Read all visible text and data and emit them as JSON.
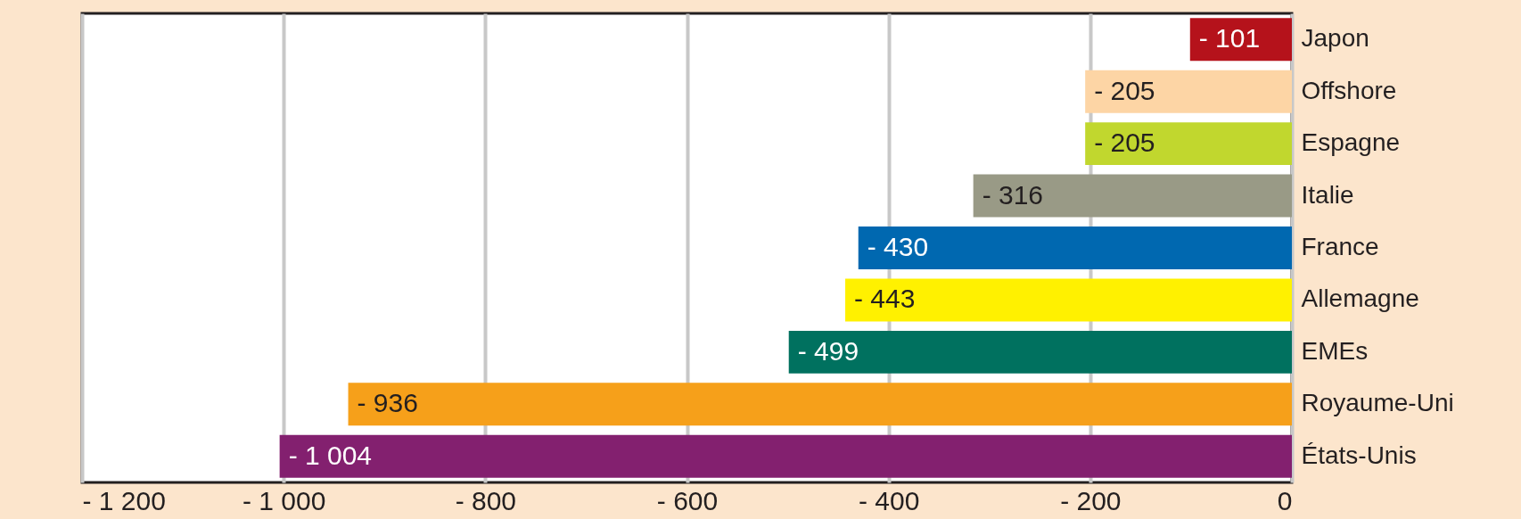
{
  "chart_data": {
    "type": "bar",
    "orientation": "horizontal",
    "categories": [
      "Japon",
      "Offshore",
      "Espagne",
      "Italie",
      "France",
      "Allemagne",
      "EMEs",
      "Royaume-Uni",
      "États-Unis"
    ],
    "values": [
      -101,
      -205,
      -205,
      -316,
      -430,
      -443,
      -499,
      -936,
      -1004
    ],
    "value_labels": [
      "- 101",
      "- 205",
      "- 205",
      "- 316",
      "- 430",
      "- 443",
      "- 499",
      "- 936",
      "- 1 004"
    ],
    "colors": [
      "#b5121b",
      "#fdd5a5",
      "#c1d72e",
      "#999a86",
      "#0068b0",
      "#fff100",
      "#00715f",
      "#f6a01a",
      "#83206f"
    ],
    "xlim": [
      -1200,
      0
    ],
    "xticks": [
      {
        "value": -1200,
        "label": "- 1 200"
      },
      {
        "value": -1000,
        "label": "- 1 000"
      },
      {
        "value": -800,
        "label": "- 800"
      },
      {
        "value": -600,
        "label": "- 600"
      },
      {
        "value": -400,
        "label": "- 400"
      },
      {
        "value": -200,
        "label": "- 200"
      },
      0
    ],
    "grid": "x"
  }
}
